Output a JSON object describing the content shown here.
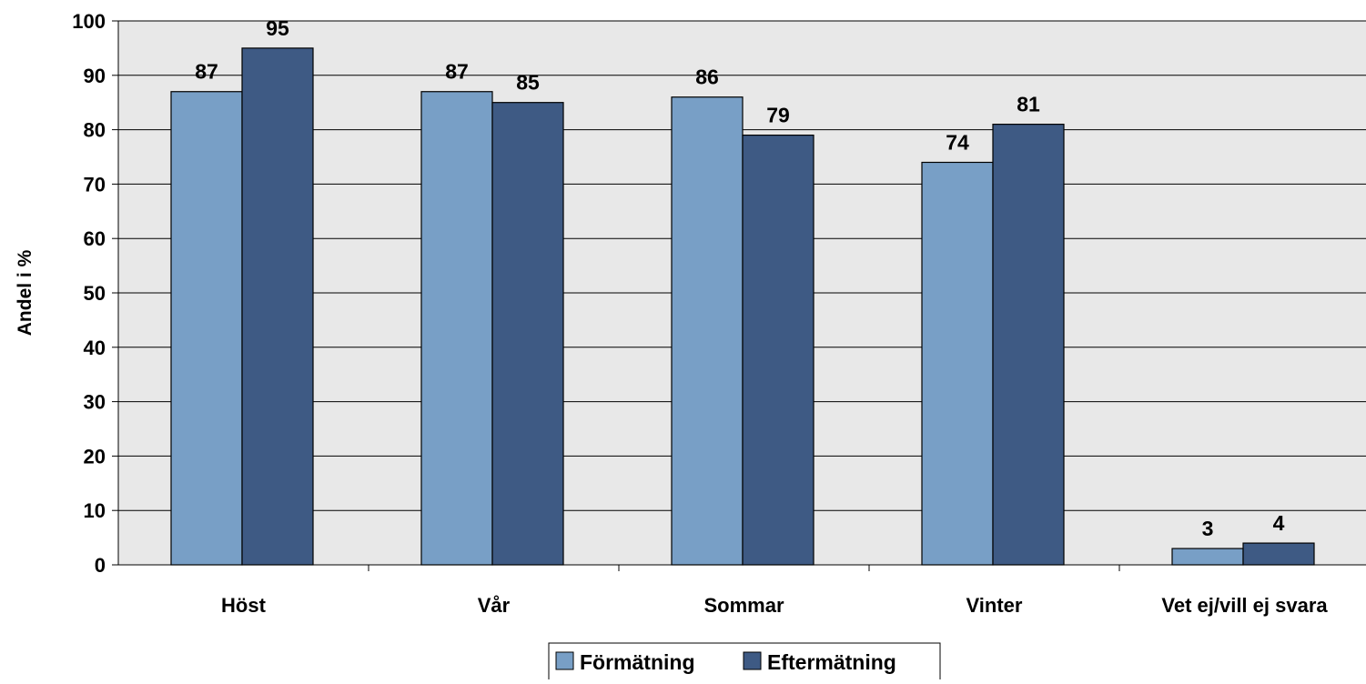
{
  "chart_data": {
    "type": "bar",
    "title": "",
    "xlabel": "",
    "ylabel": "Andel i %",
    "ylim": [
      0,
      100
    ],
    "yticks": [
      0,
      10,
      20,
      30,
      40,
      50,
      60,
      70,
      80,
      90,
      100
    ],
    "grid": true,
    "categories": [
      "Höst",
      "Vår",
      "Sommar",
      "Vinter",
      "Vet ej/vill ej svara"
    ],
    "series": [
      {
        "name": "Förmätning",
        "color": "#789FC6",
        "values": [
          87,
          87,
          86,
          74,
          3
        ]
      },
      {
        "name": "Eftermätning",
        "color": "#3E5A84",
        "values": [
          95,
          85,
          79,
          81,
          4
        ]
      }
    ],
    "legend_position": "bottom",
    "plot_background": "#E8E8E8"
  }
}
